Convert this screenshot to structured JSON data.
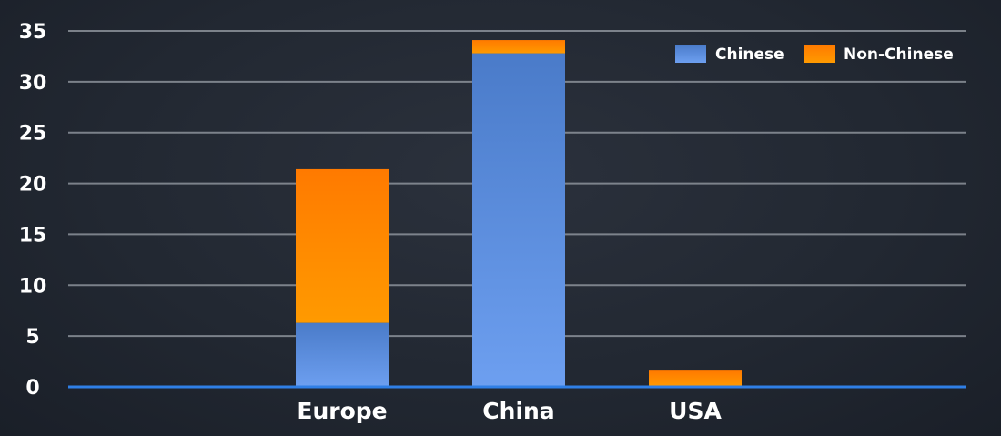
{
  "chart_data": {
    "type": "bar",
    "stacked": true,
    "categories": [
      "Europe",
      "China",
      "USA"
    ],
    "series": [
      {
        "name": "Chinese",
        "values": [
          6.3,
          32.8,
          0
        ],
        "color": "#5b8fe0"
      },
      {
        "name": "Non-Chinese",
        "values": [
          15.1,
          1.3,
          1.6
        ],
        "color": "#ff8c00"
      }
    ],
    "title": "",
    "xlabel": "",
    "ylabel": "",
    "ylim": [
      0,
      35
    ],
    "yticks": [
      0,
      5,
      10,
      15,
      20,
      25,
      30,
      35
    ],
    "grid": true,
    "legend_position": "top-right",
    "colors": {
      "background": "#222832",
      "gridline": "#9aa0a8",
      "baseline": "#2f7fe6",
      "text": "#ffffff"
    }
  }
}
